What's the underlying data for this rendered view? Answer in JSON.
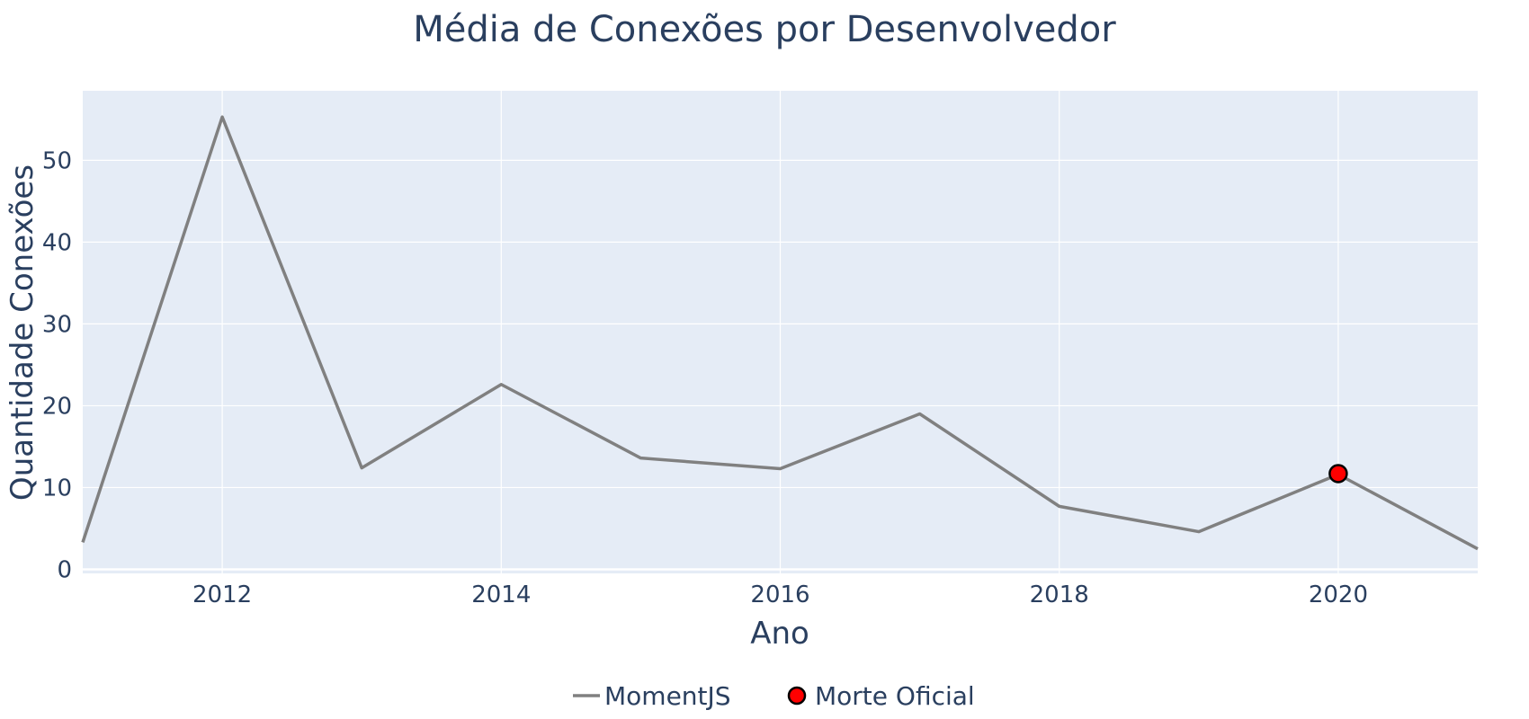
{
  "chart_data": {
    "type": "line",
    "title": "Média de Conexões por Desenvolvedor",
    "xlabel": "Ano",
    "ylabel": "Quantidade Conexões",
    "xlim": [
      2011,
      2021
    ],
    "ylim": [
      -0.5,
      58.5
    ],
    "x_ticks": [
      2012,
      2014,
      2016,
      2018,
      2020
    ],
    "x_tick_labels": [
      "2012",
      "2014",
      "2016",
      "2018",
      "2020"
    ],
    "y_ticks": [
      0,
      10,
      20,
      30,
      40,
      50
    ],
    "y_tick_labels": [
      "0",
      "10",
      "20",
      "30",
      "40",
      "50"
    ],
    "grid": true,
    "legend_position": "bottom-center",
    "plot_background": "#e5ecf6",
    "series": [
      {
        "name": "MomentJS",
        "kind": "line",
        "color": "#808080",
        "x": [
          2011,
          2012,
          2013,
          2014,
          2015,
          2016,
          2017,
          2018,
          2019,
          2020,
          2021
        ],
        "y": [
          3.3,
          55.3,
          12.4,
          22.6,
          13.6,
          12.3,
          19.0,
          7.7,
          4.6,
          11.6,
          2.5
        ]
      },
      {
        "name": "Morte Oficial",
        "kind": "marker",
        "color": "#ff0000",
        "edge_color": "#000000",
        "x": [
          2020
        ],
        "y": [
          11.7
        ]
      }
    ]
  }
}
